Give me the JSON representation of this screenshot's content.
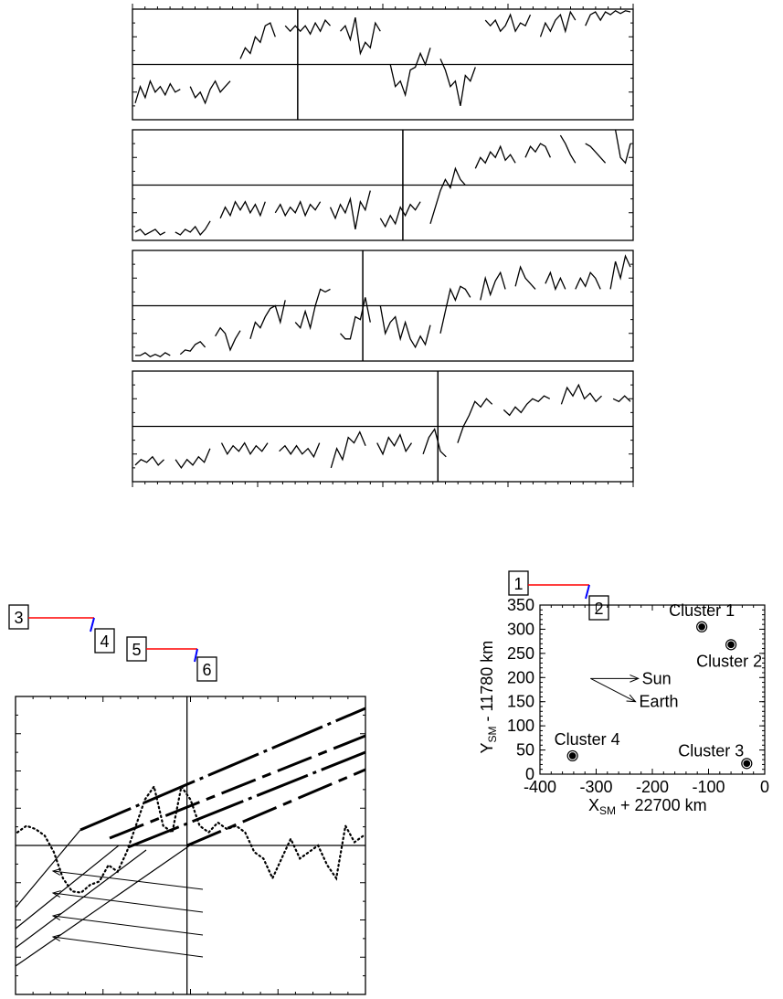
{
  "colors": {
    "ink": "#000000",
    "red_segment": "#ff0000",
    "blue_segment": "#0000ff"
  },
  "labels": {
    "box1": "1",
    "box2": "2",
    "box3": "3",
    "box4": "4",
    "box5": "5",
    "box6": "6",
    "sun": "Sun",
    "earth": "Earth"
  },
  "chart_data": [
    {
      "type": "line",
      "panel": "time-series-1",
      "grid": false,
      "series": [
        {
          "values": [
            -0.7,
            -0.4,
            -0.6,
            -0.3,
            -0.5,
            -0.4,
            -0.55,
            -0.35,
            -0.5,
            -0.45,
            null,
            -0.4,
            -0.6,
            -0.5,
            -0.7,
            -0.45,
            -0.3,
            -0.5,
            -0.4,
            -0.3,
            null,
            0.1,
            0.3,
            0.2,
            0.5,
            0.4,
            0.7,
            0.75,
            0.5,
            null,
            0.7,
            0.6,
            0.7,
            0.6,
            0.7,
            0.55,
            0.75,
            0.6,
            0.8,
            0.7,
            null,
            0.6,
            0.7,
            0.45,
            0.85,
            0.2,
            0.4,
            0.3,
            0.75,
            0.6,
            null,
            0.0,
            -0.4,
            -0.3,
            -0.55,
            -0.1,
            -0.05,
            0.2,
            0.0,
            0.3,
            null,
            0.1,
            -0.1,
            -0.4,
            -0.3,
            -0.75,
            -0.2,
            -0.3,
            -0.05,
            null,
            0.8,
            0.7,
            0.8,
            0.6,
            0.7,
            0.9,
            0.6,
            0.75,
            0.7,
            0.9,
            null,
            0.5,
            0.75,
            0.6,
            0.8,
            0.9,
            0.6,
            0.95,
            0.8,
            null,
            0.7,
            0.9,
            0.95,
            0.8,
            0.95,
            0.9,
            0.97,
            0.92,
            0.97,
            0.95
          ]
        }
      ],
      "markers": {
        "vertical_line_fraction": 0.33,
        "horizontal_reference": 0
      },
      "ylim": [
        -1,
        1
      ]
    },
    {
      "type": "line",
      "panel": "time-series-2",
      "grid": false,
      "series": [
        {
          "values": [
            -0.85,
            -0.8,
            -0.9,
            -0.85,
            -0.8,
            -0.9,
            -0.85,
            null,
            -0.85,
            -0.9,
            -0.8,
            -0.85,
            -0.75,
            -0.9,
            -0.8,
            -0.65,
            null,
            -0.6,
            -0.4,
            -0.55,
            -0.3,
            -0.45,
            -0.3,
            -0.5,
            -0.35,
            -0.55,
            -0.3,
            null,
            -0.5,
            -0.35,
            -0.55,
            -0.4,
            -0.5,
            -0.3,
            -0.55,
            -0.35,
            -0.45,
            -0.3,
            null,
            -0.4,
            -0.6,
            -0.35,
            -0.5,
            -0.25,
            -0.8,
            -0.3,
            -0.45,
            -0.1,
            null,
            -0.6,
            -0.75,
            -0.55,
            -0.7,
            -0.4,
            -0.55,
            -0.35,
            -0.45,
            -0.3,
            null,
            -0.7,
            -0.4,
            -0.1,
            0.1,
            -0.05,
            0.3,
            0.1,
            0.0,
            null,
            0.3,
            0.5,
            0.4,
            0.6,
            0.5,
            0.7,
            0.45,
            0.55,
            0.4,
            null,
            0.5,
            0.7,
            0.6,
            0.75,
            0.7,
            0.5,
            null,
            0.9,
            0.75,
            0.55,
            0.4,
            null,
            0.75,
            0.7,
            0.6,
            0.5,
            0.4,
            null,
            1.0,
            0.5,
            0.4,
            0.75
          ]
        }
      ],
      "markers": {
        "vertical_line_fraction": 0.54,
        "horizontal_reference": 0
      },
      "ylim": [
        -1,
        1
      ]
    },
    {
      "type": "line",
      "panel": "time-series-3",
      "grid": false,
      "series": [
        {
          "values": [
            -0.9,
            -0.9,
            -0.85,
            -0.92,
            -0.88,
            -0.92,
            -0.85,
            -0.9,
            null,
            -0.88,
            -0.8,
            -0.82,
            -0.7,
            -0.65,
            -0.75,
            null,
            -0.55,
            -0.4,
            -0.5,
            -0.8,
            -0.6,
            -0.45,
            null,
            -0.6,
            -0.3,
            -0.4,
            -0.2,
            -0.05,
            0.0,
            -0.3,
            0.1,
            null,
            -0.3,
            -0.4,
            -0.1,
            -0.4,
            0.0,
            0.3,
            0.25,
            0.3,
            null,
            -0.5,
            -0.6,
            -0.6,
            -0.2,
            -0.25,
            0.15,
            -0.3,
            null,
            0.0,
            -0.5,
            -0.3,
            -0.2,
            -0.6,
            -0.3,
            -0.6,
            -0.75,
            -0.55,
            -0.7,
            -0.35,
            null,
            -0.5,
            -0.1,
            0.3,
            0.1,
            0.35,
            0.3,
            0.15,
            null,
            0.1,
            0.5,
            0.2,
            0.45,
            0.6,
            0.3,
            null,
            0.35,
            0.7,
            0.5,
            0.4,
            0.3,
            null,
            0.4,
            0.6,
            0.3,
            0.5,
            0.3,
            null,
            0.3,
            0.5,
            0.35,
            0.6,
            0.5,
            0.3,
            null,
            0.3,
            0.8,
            0.5,
            0.9,
            0.7
          ]
        }
      ],
      "markers": {
        "vertical_line_fraction": 0.46,
        "horizontal_reference": 0
      },
      "ylim": [
        -1,
        1
      ]
    },
    {
      "type": "line",
      "panel": "time-series-4",
      "grid": false,
      "series": [
        {
          "values": [
            -0.7,
            -0.6,
            -0.65,
            -0.55,
            -0.7,
            -0.6,
            null,
            -0.6,
            -0.75,
            -0.6,
            -0.7,
            -0.55,
            -0.65,
            -0.4,
            null,
            -0.3,
            -0.5,
            -0.35,
            -0.45,
            -0.3,
            -0.5,
            -0.35,
            -0.45,
            -0.3,
            null,
            -0.45,
            -0.35,
            -0.5,
            -0.35,
            -0.5,
            -0.4,
            -0.55,
            -0.3,
            null,
            -0.75,
            -0.4,
            -0.6,
            -0.2,
            -0.3,
            -0.1,
            -0.35,
            null,
            -0.3,
            -0.5,
            -0.2,
            -0.35,
            -0.15,
            -0.45,
            -0.3,
            null,
            -0.5,
            -0.2,
            -0.05,
            -0.45,
            -0.55,
            null,
            -0.3,
            0.0,
            0.2,
            0.45,
            0.35,
            0.5,
            0.4,
            null,
            0.3,
            0.2,
            0.35,
            0.25,
            0.4,
            0.5,
            0.45,
            0.55,
            0.5,
            null,
            0.4,
            0.7,
            0.55,
            0.75,
            0.5,
            0.6,
            0.45,
            0.55,
            null,
            0.5,
            0.45,
            0.55,
            0.45
          ]
        }
      ],
      "markers": {
        "vertical_line_fraction": 0.61,
        "horizontal_reference": 0
      },
      "ylim": [
        -1,
        1
      ]
    },
    {
      "type": "line",
      "panel": "timing-diagram",
      "grid": false,
      "series": [
        {
          "style": "dotted",
          "values": [
            0.2,
            0.3,
            0.25,
            0.15,
            -0.1,
            -0.5,
            -0.7,
            -0.72,
            -0.6,
            -0.55,
            -0.3,
            -0.4,
            -0.1,
            0.3,
            0.7,
            0.9,
            0.3,
            0.2,
            0.9,
            0.7,
            0.3,
            0.2,
            0.35,
            0.25,
            0.3,
            0.2,
            -0.1,
            -0.2,
            -0.5,
            -0.2,
            0.1,
            -0.2,
            -0.1,
            0.0,
            -0.3,
            -0.5,
            0.3,
            0.05,
            0.15
          ]
        },
        {
          "style": "bold-dashed-diagonal",
          "count": 4
        },
        {
          "style": "thin-diagonal",
          "count": 4
        },
        {
          "style": "arrows",
          "count": 4
        }
      ],
      "markers": {
        "vertical_line_fraction": 0.49,
        "horizontal_reference": 0
      }
    },
    {
      "type": "scatter",
      "panel": "spacecraft-positions",
      "title": "",
      "xlabel": "X",
      "xlabel_sub": "SM",
      "xlabel_rest": " + 22700 km",
      "ylabel": "Y",
      "ylabel_sub": "SM",
      "ylabel_rest": " - 11780 km",
      "xlim": [
        -400,
        0
      ],
      "ylim": [
        0,
        350
      ],
      "xticks": [
        -400,
        -300,
        -200,
        -100,
        0
      ],
      "yticks": [
        0,
        50,
        100,
        150,
        200,
        250,
        300,
        350
      ],
      "points": [
        {
          "name": "Cluster 1",
          "x": -112,
          "y": 305
        },
        {
          "name": "Cluster 2",
          "x": -60,
          "y": 268
        },
        {
          "name": "Cluster 3",
          "x": -32,
          "y": 22
        },
        {
          "name": "Cluster 4",
          "x": -342,
          "y": 38
        }
      ],
      "direction_arrows": [
        {
          "label": "Sun",
          "from": [
            -310,
            198
          ],
          "to": [
            -225,
            198
          ]
        },
        {
          "label": "Earth",
          "from": [
            -310,
            198
          ],
          "to": [
            -230,
            150
          ]
        }
      ],
      "grid": false
    }
  ]
}
